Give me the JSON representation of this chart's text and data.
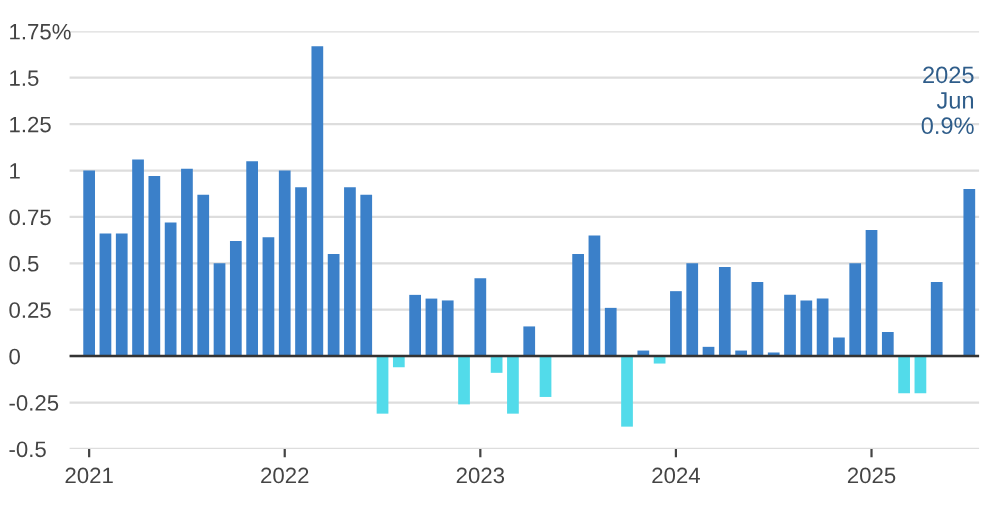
{
  "chart_data": {
    "type": "bar",
    "categories": [
      "2021",
      null,
      null,
      null,
      null,
      null,
      null,
      null,
      null,
      null,
      null,
      null,
      "2022",
      null,
      null,
      null,
      null,
      null,
      null,
      null,
      null,
      null,
      null,
      null,
      "2023",
      null,
      null,
      null,
      null,
      null,
      null,
      null,
      null,
      null,
      null,
      null,
      "2024",
      null,
      null,
      null,
      null,
      null,
      null,
      null,
      null,
      null,
      null,
      null,
      "2025",
      null,
      null,
      null,
      null,
      null,
      null
    ],
    "values": [
      1.0,
      0.66,
      0.66,
      1.06,
      0.97,
      0.72,
      1.01,
      0.87,
      0.5,
      0.62,
      1.05,
      0.64,
      1.0,
      0.91,
      1.67,
      0.55,
      0.91,
      0.87,
      -0.31,
      -0.06,
      0.33,
      0.31,
      0.3,
      -0.26,
      0.42,
      -0.09,
      -0.31,
      0.16,
      -0.22,
      0,
      0.55,
      0.65,
      0.26,
      -0.38,
      0.03,
      -0.04,
      0.35,
      0.5,
      0.05,
      0.48,
      0.03,
      0.4,
      0.02,
      0.33,
      0.3,
      0.31,
      0.1,
      0.5,
      0.68,
      0.13,
      -0.2,
      -0.2,
      0.4,
      0,
      0.9
    ],
    "colors": [
      "#3b80c9",
      "#3b80c9",
      "#3b80c9",
      "#3b80c9",
      "#3b80c9",
      "#3b80c9",
      "#3b80c9",
      "#3b80c9",
      "#3b80c9",
      "#3b80c9",
      "#3b80c9",
      "#3b80c9",
      "#3b80c9",
      "#3b80c9",
      "#3b80c9",
      "#3b80c9",
      "#3b80c9",
      "#3b80c9",
      "#52dbea",
      "#52dbea",
      "#3b80c9",
      "#3b80c9",
      "#3b80c9",
      "#52dbea",
      "#3b80c9",
      "#52dbea",
      "#52dbea",
      "#3b80c9",
      "#52dbea",
      "#3b80c9",
      "#3b80c9",
      "#3b80c9",
      "#3b80c9",
      "#52dbea",
      "#3b80c9",
      "#52dbea",
      "#3b80c9",
      "#3b80c9",
      "#3b80c9",
      "#3b80c9",
      "#3b80c9",
      "#3b80c9",
      "#3b80c9",
      "#3b80c9",
      "#3b80c9",
      "#3b80c9",
      "#3b80c9",
      "#3b80c9",
      "#3b80c9",
      "#3b80c9",
      "#52dbea",
      "#52dbea",
      "#3b80c9",
      "#3b80c9",
      "#3b80c9"
    ],
    "ylim": [
      -0.5,
      1.75
    ],
    "yticks": [
      -0.5,
      -0.25,
      0,
      0.25,
      0.5,
      0.75,
      1,
      1.25,
      1.5,
      {
        "value": 1.75,
        "label": "1.75%"
      }
    ],
    "grid": "y",
    "annotations": [
      "2025\nJun\n0.9%"
    ]
  }
}
